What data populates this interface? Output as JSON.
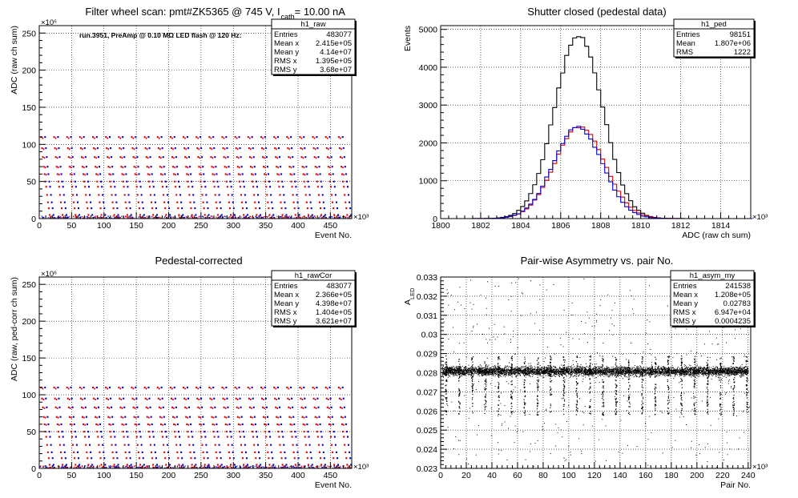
{
  "chart_data": [
    {
      "type": "scatter",
      "title": "Filter wheel scan: pmt#ZK5365 @ 745 V, I",
      "title_sub": "cath",
      "title_tail": " = 10.00 nA",
      "annotation": "run.3951, PreAmp @ 0.10 MΩ LED flash @ 120 Hz:",
      "xlabel": "Event No.",
      "ylabel": "ADC (raw ch sum)",
      "x_exponent": "×10³",
      "y_exponent": "×10⁶",
      "xlim": [
        0,
        483
      ],
      "ylim": [
        0,
        260
      ],
      "x_ticks": [
        "0",
        "50",
        "100",
        "150",
        "200",
        "250",
        "300",
        "350",
        "400",
        "450"
      ],
      "y_ticks": [
        "0",
        "50",
        "100",
        "150",
        "200",
        "250"
      ],
      "grid": true,
      "stats": {
        "name": "h1_raw",
        "rows": [
          [
            "Entries",
            "483077"
          ],
          [
            "Mean x",
            "2.415e+05"
          ],
          [
            "Mean y",
            "4.14e+07"
          ],
          [
            "RMS x",
            "1.395e+05"
          ],
          [
            "RMS y",
            "3.68e+07"
          ]
        ]
      },
      "levels": [
        110,
        95,
        83,
        70,
        60,
        50,
        43,
        32,
        22,
        14,
        5,
        1
      ],
      "period": 20,
      "colors": {
        "a": "#e00000",
        "b": "#0000d0"
      }
    },
    {
      "type": "line",
      "title": "Shutter closed (pedestal data)",
      "xlabel": "ADC (raw ch sum)",
      "ylabel": "Events",
      "x_exponent": "×10³",
      "xlim": [
        1800,
        1815.5
      ],
      "ylim": [
        0,
        5100
      ],
      "x_ticks": [
        "1800",
        "1802",
        "1804",
        "1806",
        "1808",
        "1810",
        "1812",
        "1814"
      ],
      "y_ticks": [
        "0",
        "1000",
        "2000",
        "3000",
        "4000",
        "5000"
      ],
      "grid": true,
      "stats": {
        "name": "h1_ped",
        "rows": [
          [
            "Entries",
            "98151"
          ],
          [
            "Mean",
            "1.807e+06"
          ],
          [
            "RMS",
            "1222"
          ]
        ]
      },
      "series": [
        {
          "color": "#000000",
          "mean": 1806.9,
          "sigma": 1.2,
          "peak": 4850
        },
        {
          "color": "#d00000",
          "mean": 1806.95,
          "sigma": 1.25,
          "peak": 2430
        },
        {
          "color": "#0000d0",
          "mean": 1806.85,
          "sigma": 1.22,
          "peak": 2420
        }
      ]
    },
    {
      "type": "scatter",
      "title": "Pedestal-corrected",
      "xlabel": "Event No.",
      "ylabel": "ADC (raw, ped-corr ch sum)",
      "x_exponent": "×10³",
      "y_exponent": "×10⁶",
      "xlim": [
        0,
        483
      ],
      "ylim": [
        0,
        260
      ],
      "x_ticks": [
        "0",
        "50",
        "100",
        "150",
        "200",
        "250",
        "300",
        "350",
        "400",
        "450"
      ],
      "y_ticks": [
        "0",
        "50",
        "100",
        "150",
        "200",
        "250"
      ],
      "grid": true,
      "stats": {
        "name": "h1_rawCor",
        "rows": [
          [
            "Entries",
            "483077"
          ],
          [
            "Mean x",
            "2.366e+05"
          ],
          [
            "Mean y",
            "4.398e+07"
          ],
          [
            "RMS x",
            "1.404e+05"
          ],
          [
            "RMS y",
            "3.621e+07"
          ]
        ]
      },
      "levels": [
        110,
        95,
        83,
        70,
        60,
        50,
        43,
        32,
        22,
        14,
        5,
        1
      ],
      "period": 20,
      "colors": {
        "a": "#e00000",
        "b": "#0000d0"
      }
    },
    {
      "type": "scatter",
      "title": "Pair-wise Asymmetry vs. pair No.",
      "xlabel": "Pair No.",
      "ylabel": "A",
      "ylabel_sub": "LED",
      "x_exponent": "×10³",
      "xlim": [
        0,
        242
      ],
      "ylim": [
        0.023,
        0.033
      ],
      "x_ticks": [
        "0",
        "20",
        "40",
        "60",
        "80",
        "100",
        "120",
        "140",
        "160",
        "180",
        "200",
        "220",
        "240"
      ],
      "y_ticks": [
        "0.023",
        "0.024",
        "0.025",
        "0.026",
        "0.027",
        "0.028",
        "0.029",
        "0.03",
        "0.031",
        "0.032",
        "0.033"
      ],
      "grid": true,
      "stats": {
        "name": "h1_asym_my",
        "rows": [
          [
            "Entries",
            "241538"
          ],
          [
            "Mean x",
            "1.208e+05"
          ],
          [
            "Mean y",
            "0.02783"
          ],
          [
            "RMS x",
            "6.947e+04"
          ],
          [
            "RMS y",
            "0.0004235"
          ]
        ]
      },
      "band_center": 0.0281,
      "band_width": 0.0003,
      "spike_period": 10.2,
      "spike_low": 0.0258,
      "spike_high": 0.0289
    }
  ]
}
